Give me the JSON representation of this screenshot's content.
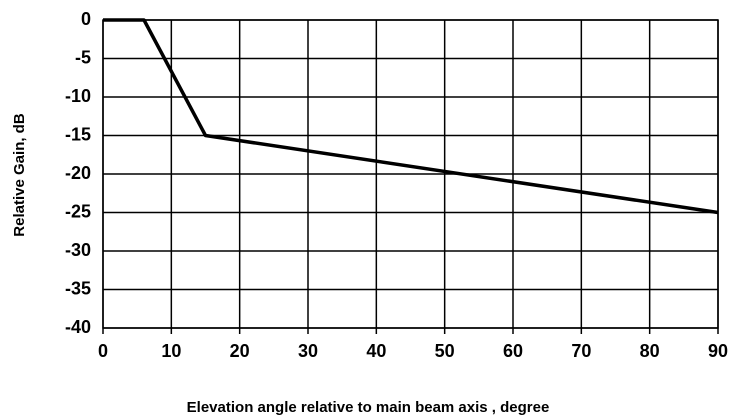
{
  "chart_data": {
    "type": "line",
    "xlabel": "Elevation angle relative to main beam axis , degree",
    "ylabel": "Relative Gain, dB",
    "x": [
      0,
      6,
      15,
      90
    ],
    "series": [
      {
        "color": "#000000",
        "values": [
          0,
          0,
          -15,
          -25
        ]
      }
    ],
    "xlim": [
      0,
      90
    ],
    "xticks": [
      0,
      10,
      20,
      30,
      40,
      50,
      60,
      70,
      80,
      90
    ],
    "ylim": [
      -40,
      0
    ],
    "yticks": [
      -40,
      -35,
      -30,
      -25,
      -20,
      -15,
      -10,
      -5,
      0
    ],
    "grid": true
  }
}
